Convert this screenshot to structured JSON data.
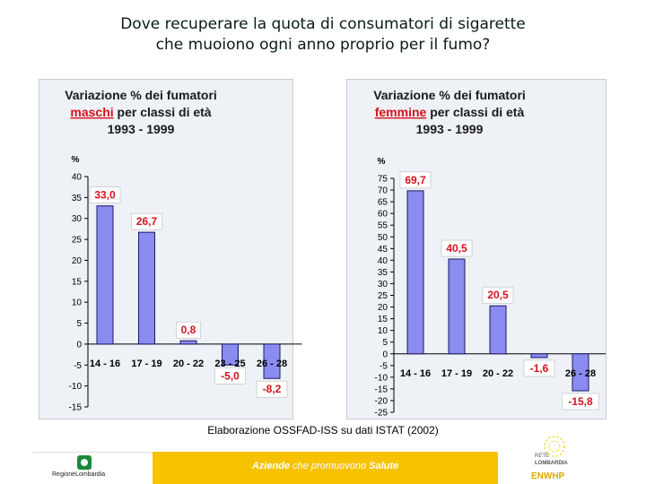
{
  "slide": {
    "title_line1": "Dove recuperare la quota di consumatori di sigarette",
    "title_line2": "che muoiono ogni anno proprio per il fumo?",
    "source": "Elaborazione OSSFAD-ISS su dati ISTAT (2002)"
  },
  "footer": {
    "left_logo_text": "RegioneLombardia",
    "tagline_a": "Aziende",
    "tagline_b": " che promuovono ",
    "tagline_c": "Salute",
    "right_logo_line1": "RETE",
    "right_logo_line2": "LOMBARDIA",
    "right_logo_line3": "ENWHP"
  },
  "colors": {
    "bar": "#8a8cf0",
    "bar_stroke": "#1a1a66",
    "label_red": "#d6111b",
    "footer_yellow": "#f7c200"
  },
  "chart_data": [
    {
      "type": "bar",
      "title_line1": "Variazione % dei fumatori",
      "title_red": "maschi",
      "title_line2_rest": " per classi di età",
      "title_line3": "1993 - 1999",
      "ylabel": "%",
      "ylim": [
        -15,
        40
      ],
      "yticks": [
        40,
        35,
        30,
        25,
        20,
        15,
        10,
        5,
        0,
        -5,
        -10,
        -15
      ],
      "categories": [
        "14 - 16",
        "17 - 19",
        "20 - 22",
        "23 - 25",
        "26 - 28"
      ],
      "values": [
        33.0,
        26.7,
        0.8,
        -5.0,
        -8.2
      ],
      "value_labels": [
        "33,0",
        "26,7",
        "0,8",
        "-5,0",
        "-8,2"
      ]
    },
    {
      "type": "bar",
      "title_line1": "Variazione % dei fumatori",
      "title_red": "femmine",
      "title_line2_rest": " per classi di età",
      "title_line3": "1993 - 1999",
      "ylabel": "%",
      "ylim": [
        -25,
        75
      ],
      "yticks": [
        75,
        70,
        65,
        60,
        55,
        50,
        45,
        40,
        35,
        30,
        25,
        20,
        15,
        10,
        5,
        0,
        -5,
        -10,
        -15,
        -20,
        -25
      ],
      "categories": [
        "14 - 16",
        "17 - 19",
        "20 - 22",
        "23 - 25",
        "26 - 28"
      ],
      "values": [
        69.7,
        40.5,
        20.5,
        -1.6,
        -15.8
      ],
      "value_labels": [
        "69,7",
        "40,5",
        "20,5",
        "-1,6",
        "-15,8"
      ]
    }
  ]
}
